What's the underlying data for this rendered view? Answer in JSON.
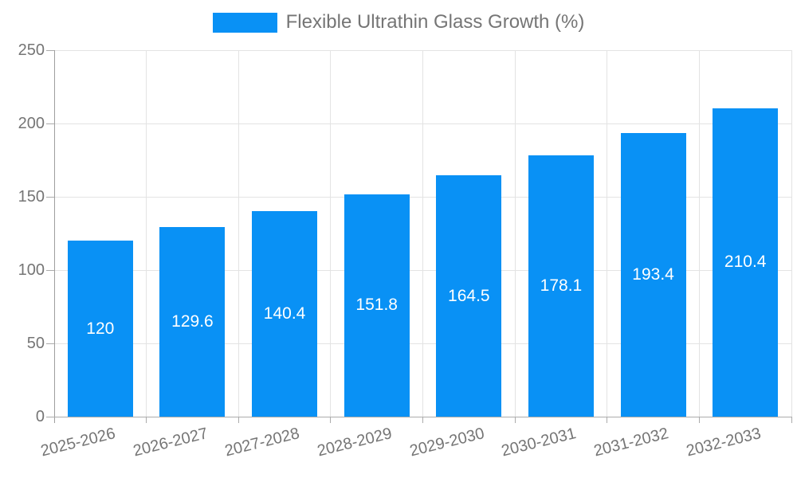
{
  "legend": {
    "label": "Flexible Ultrathin Glass Growth (%)"
  },
  "chart_data": {
    "type": "bar",
    "title": "Flexible Ultrathin Glass Growth (%)",
    "categories": [
      "2025-2026",
      "2026-2027",
      "2027-2028",
      "2028-2029",
      "2029-2030",
      "2030-2031",
      "2031-2032",
      "2032-2033"
    ],
    "values": [
      120,
      129.6,
      140.4,
      151.8,
      164.5,
      178.1,
      193.4,
      210.4
    ],
    "value_labels": [
      "120",
      "129.6",
      "140.4",
      "151.8",
      "164.5",
      "178.1",
      "193.4",
      "210.4"
    ],
    "xlabel": "",
    "ylabel": "",
    "ylim": [
      0,
      250
    ],
    "yticks": [
      0,
      50,
      100,
      150,
      200,
      250
    ],
    "grid": true,
    "legend_position": "top",
    "colors": {
      "bar": "#0991f5",
      "value_label": "#ffffff",
      "axis_label": "#757575",
      "gridline": "#e3e3e3",
      "axis_line": "#9e9e9e",
      "background": "#ffffff"
    }
  }
}
